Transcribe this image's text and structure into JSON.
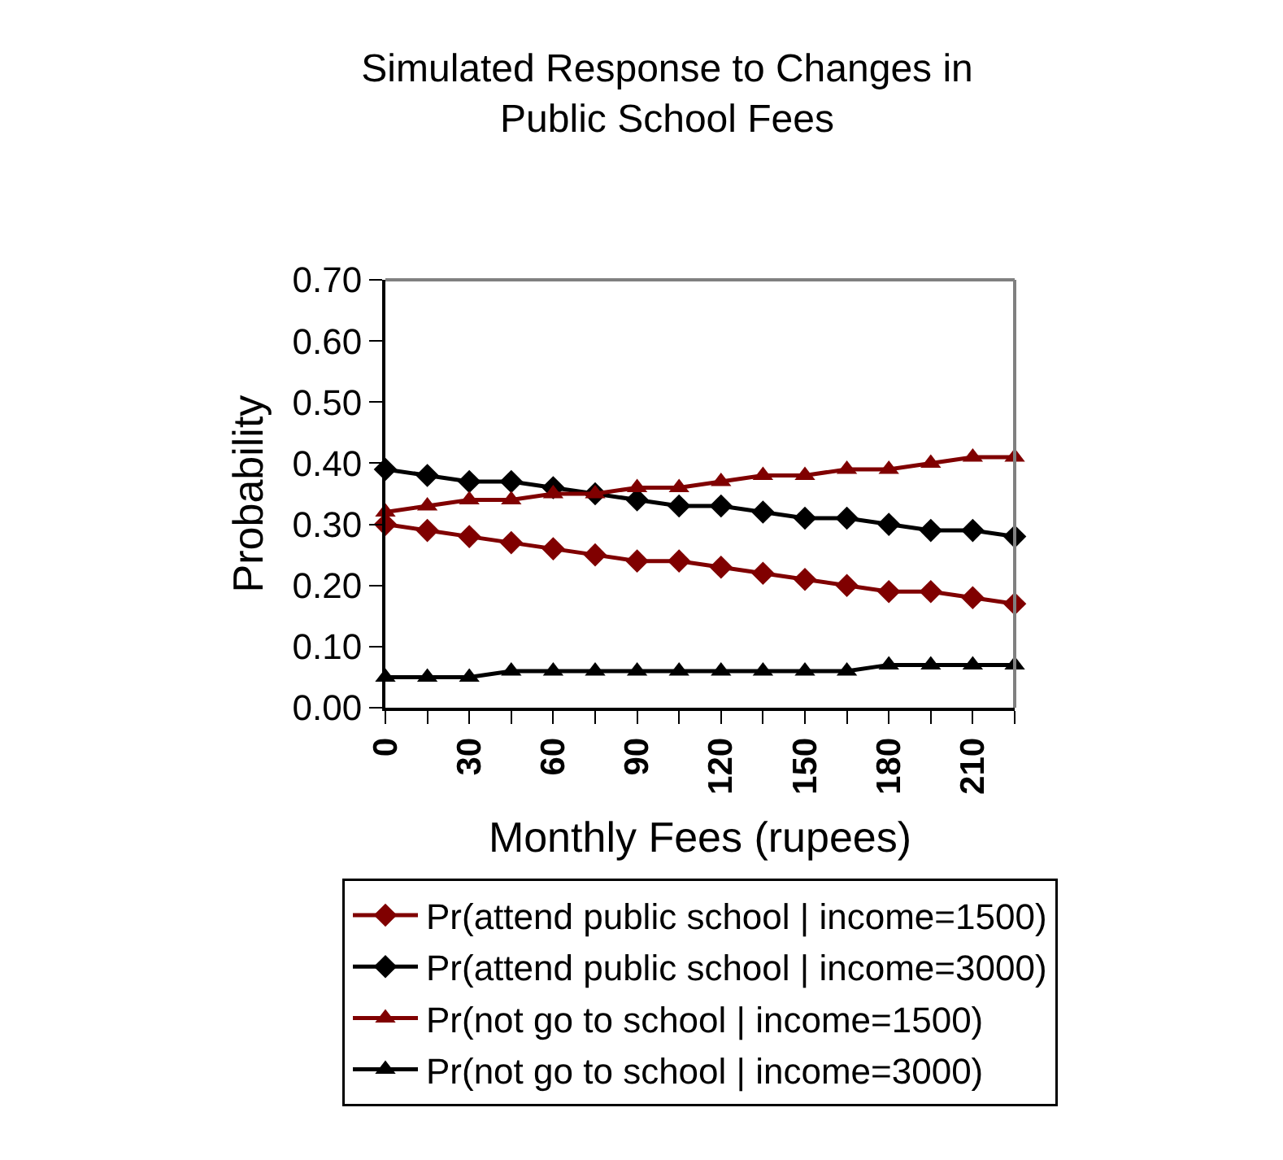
{
  "chart_data": {
    "type": "line",
    "title": "Simulated Response to Changes in\nPublic School Fees",
    "xlabel": "Monthly Fees (rupees)",
    "ylabel": "Probability",
    "x": [
      0,
      15,
      30,
      45,
      60,
      75,
      90,
      105,
      120,
      135,
      150,
      165,
      180,
      195,
      210,
      225
    ],
    "xlim": [
      0,
      225
    ],
    "xticks": [
      0,
      {
        "value": 15,
        "label": null
      },
      30,
      {
        "value": 45,
        "label": null
      },
      60,
      {
        "value": 75,
        "label": null
      },
      90,
      {
        "value": 105,
        "label": null
      },
      120,
      {
        "value": 135,
        "label": null
      },
      150,
      {
        "value": 165,
        "label": null
      },
      180,
      {
        "value": 195,
        "label": null
      },
      210,
      {
        "value": 225,
        "label": null
      }
    ],
    "ylim": [
      0,
      0.7
    ],
    "yticks": [
      {
        "value": 0,
        "label": "0.00"
      },
      {
        "value": 0.1,
        "label": "0.10"
      },
      {
        "value": 0.2,
        "label": "0.20"
      },
      {
        "value": 0.3,
        "label": "0.30"
      },
      {
        "value": 0.4,
        "label": "0.40"
      },
      {
        "value": 0.5,
        "label": "0.50"
      },
      {
        "value": 0.6,
        "label": "0.60"
      },
      {
        "value": 0.7,
        "label": "0.70"
      }
    ],
    "grid": false,
    "legend": "bottom",
    "line_style": "solid",
    "series": [
      {
        "name": "Pr(attend public school | income=1500)",
        "color": "#800000",
        "marker": "diamond",
        "values": [
          0.3,
          0.29,
          0.28,
          0.27,
          0.26,
          0.25,
          0.24,
          0.24,
          0.23,
          0.22,
          0.21,
          0.2,
          0.19,
          0.19,
          0.18,
          0.17
        ]
      },
      {
        "name": "Pr(attend public school | income=3000)",
        "color": "#000000",
        "marker": "diamond",
        "values": [
          0.39,
          0.38,
          0.37,
          0.37,
          0.36,
          0.35,
          0.34,
          0.33,
          0.33,
          0.32,
          0.31,
          0.31,
          0.3,
          0.29,
          0.29,
          0.28
        ]
      },
      {
        "name": "Pr(not go to school | income=1500)",
        "color": "#800000",
        "marker": "triangle",
        "values": [
          0.32,
          0.33,
          0.34,
          0.34,
          0.35,
          0.35,
          0.36,
          0.36,
          0.37,
          0.38,
          0.38,
          0.39,
          0.39,
          0.4,
          0.41,
          0.41
        ]
      },
      {
        "name": "Pr(not go to school | income=3000)",
        "color": "#000000",
        "marker": "triangle",
        "values": [
          0.05,
          0.05,
          0.05,
          0.06,
          0.06,
          0.06,
          0.06,
          0.06,
          0.06,
          0.06,
          0.06,
          0.06,
          0.07,
          0.07,
          0.07,
          0.07
        ]
      }
    ]
  }
}
